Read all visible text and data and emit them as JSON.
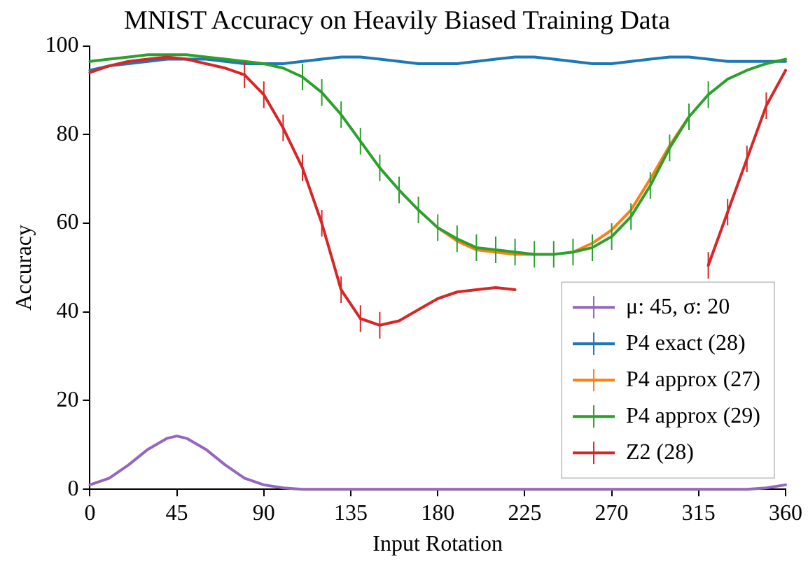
{
  "chart_data": {
    "type": "line",
    "title": "MNIST Accuracy on Heavily Biased Training Data",
    "xlabel": "Input Rotation",
    "ylabel": "Accuracy",
    "x": [
      0,
      10,
      20,
      30,
      40,
      50,
      60,
      70,
      80,
      90,
      100,
      110,
      120,
      130,
      140,
      150,
      160,
      170,
      180,
      190,
      200,
      210,
      220,
      230,
      240,
      250,
      260,
      270,
      280,
      290,
      300,
      310,
      320,
      330,
      340,
      350,
      360
    ],
    "xlim": [
      0,
      360
    ],
    "xticks": [
      0,
      45,
      90,
      135,
      180,
      225,
      270,
      315,
      360
    ],
    "ylim": [
      0,
      100
    ],
    "yticks": [
      0,
      20,
      40,
      60,
      80,
      100
    ],
    "grid": false,
    "legend": "bottom right",
    "marker": "none",
    "line_style": "solid",
    "series": [
      {
        "name": "μ: 45, σ: 20",
        "color": "#9467bd",
        "x": [
          0,
          10,
          20,
          30,
          40,
          45,
          50,
          60,
          70,
          80,
          90,
          100,
          110,
          120,
          135,
          180,
          225,
          270,
          315,
          340,
          350,
          360
        ],
        "values": [
          1,
          2.5,
          5.5,
          9,
          11.5,
          12,
          11.5,
          9,
          5.5,
          2.5,
          1,
          0.3,
          0,
          0,
          0,
          0,
          0,
          0,
          0,
          0,
          0.3,
          1
        ]
      },
      {
        "name": "P4 exact (28)",
        "color": "#1f77b4",
        "values": [
          94.5,
          95.5,
          96,
          96.5,
          97,
          97,
          97,
          96.5,
          96,
          96,
          96,
          96.5,
          97,
          97.5,
          97.5,
          97,
          96.5,
          96,
          96,
          96,
          96.5,
          97,
          97.5,
          97.5,
          97,
          96.5,
          96,
          96,
          96.5,
          97,
          97.5,
          97.5,
          97,
          96.5,
          96.5,
          96.5,
          96.5
        ]
      },
      {
        "name": "P4 approx (27)",
        "color": "#ff7f0e",
        "values": [
          null,
          null,
          null,
          null,
          null,
          null,
          null,
          null,
          null,
          null,
          null,
          null,
          null,
          null,
          null,
          null,
          null,
          null,
          59,
          56,
          54,
          53.5,
          53,
          53,
          null,
          53.5,
          55.5,
          58.5,
          63,
          70,
          77.5,
          84,
          null,
          null,
          null,
          null,
          null
        ]
      },
      {
        "name": "P4 approx (29)",
        "color": "#2ca02c",
        "values": [
          96.5,
          97,
          97.5,
          98,
          98,
          98,
          97.5,
          97,
          96.5,
          96,
          95,
          93,
          89.5,
          84.5,
          78.5,
          72.5,
          67.5,
          63,
          59,
          56.5,
          54.5,
          54,
          53.5,
          53,
          53,
          53.5,
          54.5,
          57,
          61.5,
          68.5,
          77,
          84,
          89,
          92.5,
          94.5,
          96,
          97
        ],
        "errors": [
          null,
          null,
          null,
          null,
          null,
          null,
          null,
          null,
          null,
          null,
          null,
          3,
          3,
          3,
          3,
          3,
          3,
          3,
          3,
          3,
          3,
          3,
          3,
          3,
          3,
          3,
          3,
          3,
          3,
          3,
          3,
          3,
          3,
          null,
          null,
          null,
          null
        ]
      },
      {
        "name": "Z2 (28)",
        "color": "#d62728",
        "values": [
          94,
          95.5,
          96.5,
          97,
          97.5,
          97,
          96,
          95,
          93.5,
          89,
          81.5,
          72.5,
          60,
          45,
          38.5,
          37,
          38,
          40.5,
          43,
          44.5,
          45,
          45.5,
          45,
          null,
          null,
          null,
          null,
          null,
          null,
          null,
          null,
          null,
          50.5,
          62.5,
          74.5,
          86.5,
          94.5
        ],
        "errors": [
          null,
          null,
          null,
          null,
          null,
          null,
          null,
          null,
          3,
          3,
          3,
          3,
          3,
          3,
          3,
          3,
          null,
          null,
          null,
          null,
          null,
          null,
          null,
          null,
          null,
          null,
          null,
          null,
          null,
          null,
          null,
          null,
          3,
          3,
          3,
          3,
          null
        ]
      }
    ]
  }
}
